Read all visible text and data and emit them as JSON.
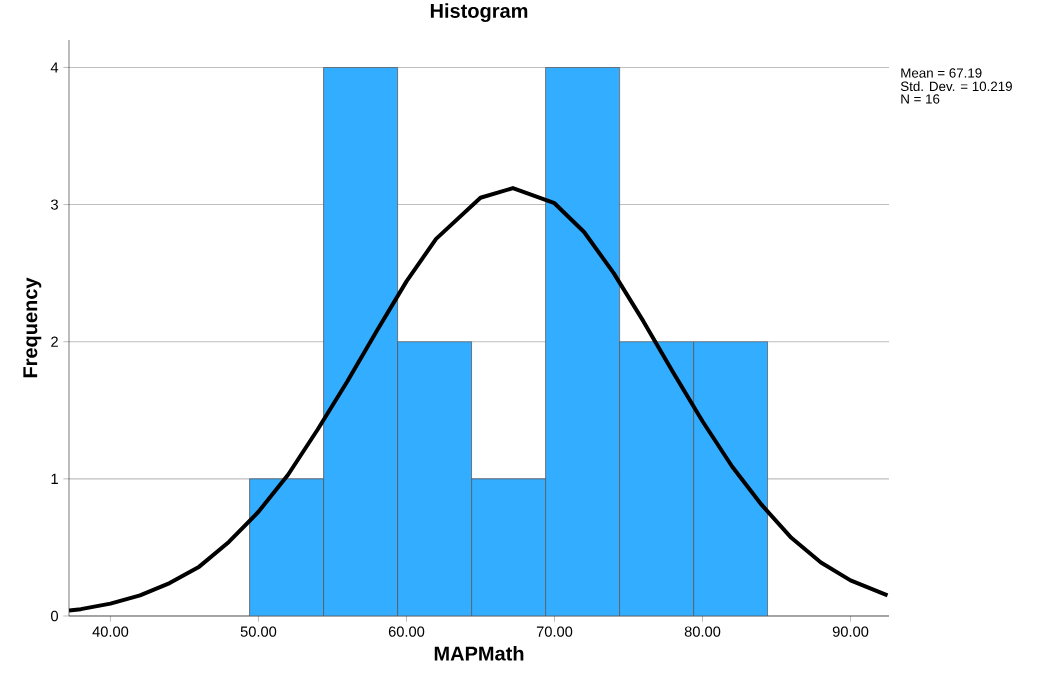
{
  "chart_data": {
    "type": "histogram",
    "title": "Histogram",
    "xlabel": "MAPMath",
    "ylabel": "Frequency",
    "bins": [
      49.4,
      54.4,
      59.4,
      64.4,
      69.4,
      74.4,
      79.4,
      84.4
    ],
    "values": [
      1,
      4,
      2,
      1,
      4,
      2,
      2
    ],
    "color": "#33adff",
    "series": [
      {
        "type": "line",
        "color": "#000000",
        "x": [
          37.2,
          38,
          40,
          42,
          44,
          46,
          48,
          50,
          52,
          54,
          56,
          58,
          60,
          62,
          65,
          67.19,
          70,
          72,
          74,
          76,
          78,
          80,
          82,
          84,
          86,
          88,
          90,
          92.5
        ],
        "values": [
          0.04,
          0.05,
          0.09,
          0.15,
          0.24,
          0.36,
          0.54,
          0.76,
          1.03,
          1.36,
          1.71,
          2.08,
          2.44,
          2.75,
          3.05,
          3.12,
          3.01,
          2.8,
          2.5,
          2.15,
          1.78,
          1.42,
          1.09,
          0.81,
          0.57,
          0.39,
          0.26,
          0.15
        ]
      }
    ],
    "xlim": [
      37.2,
      92.6
    ],
    "ylim": [
      0,
      4.2
    ],
    "xticks": [
      {
        "value": 40,
        "label": "40.00"
      },
      {
        "value": 50,
        "label": "50.00"
      },
      {
        "value": 60,
        "label": "60.00"
      },
      {
        "value": 70,
        "label": "70.00"
      },
      {
        "value": 80,
        "label": "80.00"
      },
      {
        "value": 90,
        "label": "90.00"
      }
    ],
    "yticks": [
      0,
      1,
      2,
      3,
      4
    ],
    "grid": "y",
    "annotations": [
      "Mean = 67.19",
      "Std. Dev. = 10.219",
      "N = 16"
    ]
  }
}
